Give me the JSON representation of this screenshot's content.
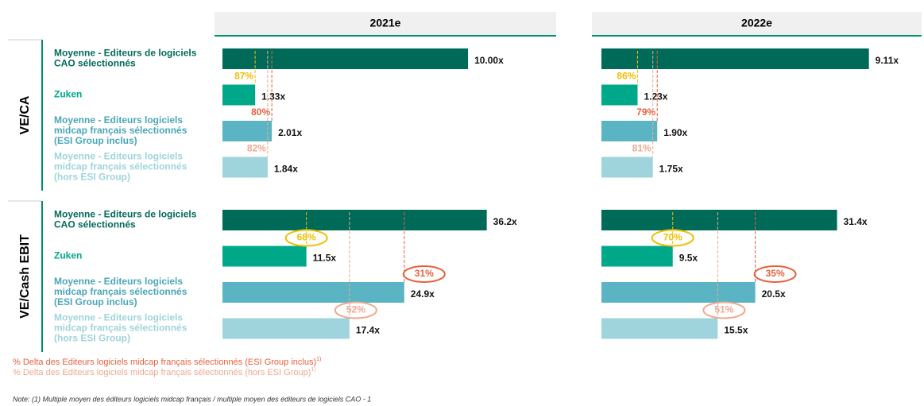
{
  "columns": [
    "2021e",
    "2022e"
  ],
  "sections": [
    {
      "label": "VE/CA",
      "circled": false,
      "categories": [
        [
          "Moyenne - Editeurs de logiciels",
          "CAO sélectionnés"
        ],
        [
          "Zuken"
        ],
        [
          "Moyenne - Editeurs logiciels",
          "midcap français sélectionnés",
          "(ESI Group inclus)"
        ],
        [
          "Moyenne - Editeurs logiciels",
          "midcap français sélectionnés",
          "(hors ESI Group)"
        ]
      ],
      "colors": [
        "#006a58",
        "#00a88a",
        "#5ab4c4",
        "#9fd4dc"
      ],
      "text_colors": [
        "#006a58",
        "#00a88a",
        "#4aa6b8",
        "#9fd4dc"
      ],
      "charts": [
        {
          "type": "bar",
          "xlim": [
            0,
            11
          ],
          "values": [
            10,
            1.33,
            2.01,
            1.84
          ],
          "value_labels": [
            "10.00x",
            "1.33x",
            "2.01x",
            "1.84x"
          ],
          "deltas": [
            "87%",
            "80%",
            "82%"
          ]
        },
        {
          "type": "bar",
          "xlim": [
            0,
            9.2
          ],
          "values": [
            9.11,
            1.23,
            1.9,
            1.75
          ],
          "value_labels": [
            "9.11x",
            "1.23x",
            "1.90x",
            "1.75x"
          ],
          "deltas": [
            "86%",
            "79%",
            "81%"
          ]
        }
      ]
    },
    {
      "label": "VE/Cash EBIT",
      "circled": true,
      "categories": [
        [
          "Moyenne - Editeurs de logiciels",
          "CAO sélectionnés"
        ],
        [
          "Zuken"
        ],
        [
          "Moyenne - Editeurs logiciels",
          "midcap français sélectionnés",
          "(ESI Group inclus)"
        ],
        [
          "Moyenne - Editeurs logiciels",
          "midcap français sélectionnés",
          "(hors ESI Group)"
        ]
      ],
      "colors": [
        "#006a58",
        "#00a88a",
        "#5ab4c4",
        "#9fd4dc"
      ],
      "text_colors": [
        "#006a58",
        "#00a88a",
        "#4aa6b8",
        "#9fd4dc"
      ],
      "charts": [
        {
          "type": "bar",
          "xlim": [
            0,
            37
          ],
          "values": [
            36.2,
            11.5,
            24.9,
            17.4
          ],
          "value_labels": [
            "36.2x",
            "11.5x",
            "24.9x",
            "17.4x"
          ],
          "deltas": [
            "68%",
            "31%",
            "52%"
          ]
        },
        {
          "type": "bar",
          "xlim": [
            0,
            36
          ],
          "values": [
            31.4,
            9.5,
            20.5,
            15.5
          ],
          "value_labels": [
            "31.4x",
            "9.5x",
            "20.5x",
            "15.5x"
          ],
          "deltas": [
            "70%",
            "35%",
            "51%"
          ]
        }
      ]
    }
  ],
  "delta_colors": [
    "#f0c000",
    "#e8603c",
    "#f0a890"
  ],
  "legend": [
    {
      "text": "% Delta des Editeurs logiciels midcap français sélectionnés (ESI Group inclus)",
      "sup": "1)",
      "color": "#e8603c"
    },
    {
      "text": "% Delta des Editeurs logiciels midcap français sélectionnés (hors ESI Group)",
      "sup": "1)",
      "color": "#f0a890"
    }
  ],
  "note": "Note: (1) Multiple moyen des éditeurs logiciels midcap français  / multiple moyen des éditeurs de logiciels CAO - 1"
}
